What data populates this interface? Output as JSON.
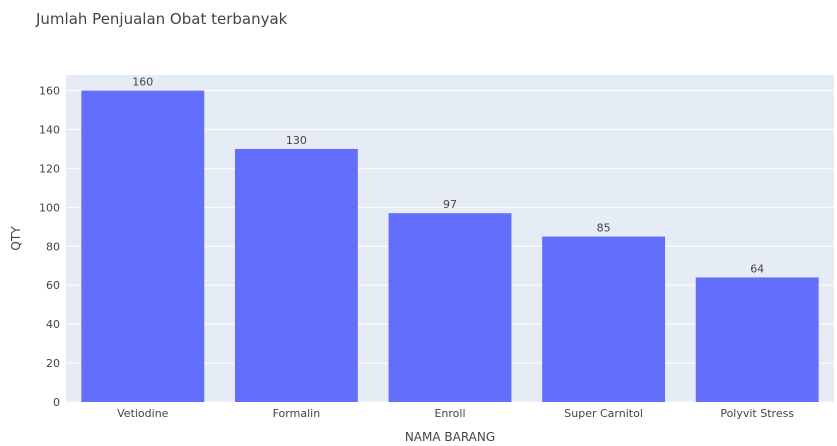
{
  "chart_data": {
    "type": "bar",
    "title": "Jumlah Penjualan Obat terbanyak",
    "xlabel": "NAMA BARANG",
    "ylabel": "QTY",
    "categories": [
      "Vetiodine",
      "Formalin",
      "Enroll",
      "Super Carnitol",
      "Polyvit Stress"
    ],
    "values": [
      160,
      130,
      97,
      85,
      64
    ],
    "data_labels": [
      "160",
      "130",
      "97",
      "85",
      "64"
    ],
    "ylim": [
      0,
      168
    ],
    "yticks": [
      0,
      20,
      40,
      60,
      80,
      100,
      120,
      140,
      160
    ],
    "grid": true,
    "colors": {
      "bar": "#636efa",
      "plot_background": "#e5ecf6",
      "gridline": "#ffffff"
    }
  }
}
